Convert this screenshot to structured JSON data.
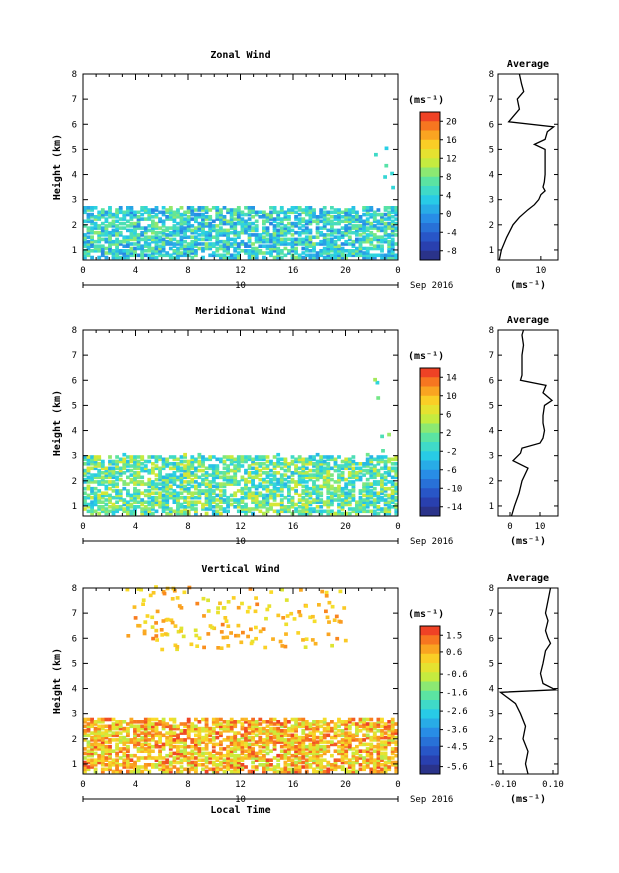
{
  "chart_data": [
    {
      "type": "heatmap",
      "title": "Zonal Wind",
      "ylabel": "Height (km)",
      "unit": "(ms⁻¹)",
      "ylim": [
        0.6,
        8
      ],
      "xlim": [
        0,
        24
      ],
      "x_ticks": [
        "0",
        "4",
        "8",
        "12",
        "16",
        "20",
        "0"
      ],
      "y_ticks": [
        "1",
        "2",
        "3",
        "4",
        "5",
        "6",
        "7",
        "8"
      ],
      "date_label": "10",
      "month_label": "Sep 2016",
      "colorbar_ticks": [
        "20",
        "16",
        "12",
        "8",
        "4",
        "0",
        "-4",
        "-8"
      ],
      "colorbar_range": [
        -10,
        22
      ],
      "data_top_km": 2.7,
      "data_mean": 4,
      "average_profile": {
        "title": "Average",
        "xlabel": "(ms⁻¹)",
        "x_ticks": [
          "0",
          "10"
        ],
        "xlim": [
          0,
          14
        ],
        "heights": [
          0.6,
          1.0,
          1.5,
          2.0,
          2.3,
          2.6,
          2.8,
          3.0,
          3.2,
          3.35,
          3.5,
          3.7,
          4.0,
          4.5,
          5.0,
          5.2,
          5.4,
          5.7,
          5.9,
          6.1,
          6.3,
          6.6,
          7.0,
          7.3,
          7.6,
          8.0
        ],
        "values": [
          0.3,
          0.8,
          2.0,
          3.5,
          5.0,
          7.0,
          8.5,
          9.5,
          10.0,
          11.0,
          10.5,
          10.8,
          11.0,
          11.0,
          11.0,
          8.5,
          11.0,
          11.5,
          13.0,
          2.5,
          3.5,
          5.0,
          4.5,
          6.0,
          5.5,
          5.0
        ]
      }
    },
    {
      "type": "heatmap",
      "title": "Meridional Wind",
      "ylabel": "Height (km)",
      "unit": "(ms⁻¹)",
      "ylim": [
        0.6,
        8
      ],
      "xlim": [
        0,
        24
      ],
      "x_ticks": [
        "0",
        "4",
        "8",
        "12",
        "16",
        "20",
        "0"
      ],
      "y_ticks": [
        "1",
        "2",
        "3",
        "4",
        "5",
        "6",
        "7",
        "8"
      ],
      "date_label": "10",
      "month_label": "Sep 2016",
      "colorbar_ticks": [
        "14",
        "10",
        "6",
        "2",
        "-2",
        "-6",
        "-10",
        "-14"
      ],
      "colorbar_range": [
        -16,
        16
      ],
      "data_top_km": 3.0,
      "data_mean": 1,
      "average_profile": {
        "title": "Average",
        "xlabel": "(ms⁻¹)",
        "x_ticks": [
          "0",
          "10"
        ],
        "xlim": [
          -4,
          16
        ],
        "heights": [
          0.6,
          1.0,
          1.5,
          2.0,
          2.5,
          2.8,
          3.1,
          3.3,
          3.5,
          3.7,
          4.0,
          4.3,
          4.6,
          5.0,
          5.2,
          5.5,
          5.8,
          6.0,
          6.2,
          6.6,
          7.0,
          7.4,
          7.8,
          8.0
        ],
        "values": [
          0.5,
          1.5,
          3.0,
          4.0,
          6.0,
          1.0,
          3.5,
          4.0,
          10.0,
          11.0,
          11.5,
          11.0,
          11.0,
          11.5,
          14.0,
          11.0,
          12.0,
          3.5,
          4.0,
          4.0,
          4.0,
          4.5,
          4.0,
          4.5
        ]
      }
    },
    {
      "type": "heatmap",
      "title": "Vertical Wind",
      "ylabel": "Height (km)",
      "unit": "(ms⁻¹)",
      "ylim": [
        0.6,
        8
      ],
      "xlim": [
        0,
        24
      ],
      "x_ticks": [
        "0",
        "4",
        "8",
        "12",
        "16",
        "20",
        "0"
      ],
      "y_ticks": [
        "1",
        "2",
        "3",
        "4",
        "5",
        "6",
        "7",
        "8"
      ],
      "date_label": "10",
      "month_label": "Sep 2016",
      "xlabel": "Local Time",
      "colorbar_ticks": [
        "1.5",
        "0.6",
        "-0.6",
        "-1.6",
        "-2.6",
        "-3.6",
        "-4.5",
        "-5.6"
      ],
      "colorbar_range": [
        -6.0,
        2.0
      ],
      "data_top_km": 2.8,
      "data_mean": 0.4,
      "average_profile": {
        "title": "Average",
        "xlabel": "(ms⁻¹)",
        "x_ticks": [
          "-0.10",
          "0.10"
        ],
        "xlim": [
          -0.12,
          0.12
        ],
        "heights": [
          0.6,
          1.0,
          1.5,
          2.0,
          2.5,
          3.0,
          3.4,
          3.7,
          3.85,
          3.95,
          4.2,
          4.6,
          5.0,
          5.5,
          5.8,
          6.0,
          6.3,
          6.7,
          7.0,
          7.5,
          8.0
        ],
        "values": [
          0.0,
          -0.01,
          0.0,
          -0.02,
          -0.01,
          -0.03,
          -0.05,
          -0.09,
          -0.11,
          0.11,
          0.06,
          0.05,
          0.06,
          0.07,
          0.09,
          0.08,
          0.07,
          0.08,
          0.07,
          0.08,
          0.09
        ]
      }
    }
  ]
}
